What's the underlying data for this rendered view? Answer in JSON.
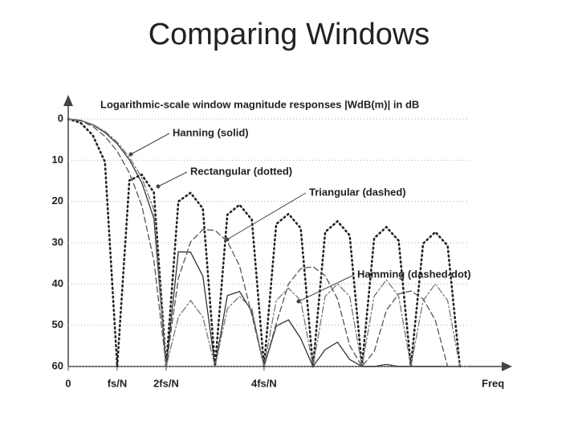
{
  "chart_data": {
    "type": "line",
    "title": "Comparing Windows",
    "subtitle": "Logarithmic-scale window magnitude responses |WdB(m)| in dB",
    "x_label": "Freq",
    "inverted_y": true,
    "grid": true,
    "x": [
      0,
      0.25,
      0.5,
      0.75,
      1,
      1.25,
      1.5,
      1.75,
      2,
      2.25,
      2.5,
      2.75,
      3,
      3.25,
      3.5,
      3.75,
      4,
      4.25,
      4.5,
      4.75,
      5,
      5.25,
      5.5,
      5.75,
      6,
      6.25,
      6.5,
      6.75,
      7,
      7.25,
      7.5,
      7.75,
      8
    ],
    "xlim": [
      0,
      8.2
    ],
    "xticks": [
      0,
      {
        "value": 1,
        "label": "fs/N"
      },
      {
        "value": 2,
        "label": "2fs/N"
      },
      {
        "value": 4,
        "label": "4fs/N"
      }
    ],
    "ylim": [
      0,
      60
    ],
    "yticks": [
      0,
      10,
      20,
      30,
      40,
      50,
      60
    ],
    "series": [
      {
        "name": "Hanning (solid)",
        "color": "#333333",
        "dash": "solid",
        "values": [
          0,
          0.35,
          1.42,
          3.27,
          6.02,
          9.9,
          15.4,
          24.1,
          60,
          32.2,
          32.3,
          38.1,
          60,
          42.8,
          41.8,
          46.7,
          60,
          50.2,
          48.7,
          53.2,
          60,
          55.9,
          54.1,
          58.3,
          60,
          60,
          59.5,
          60,
          60,
          60,
          60,
          60,
          60
        ]
      },
      {
        "name": "Rectangular (dotted)",
        "color": "#222222",
        "dash": "dotted",
        "values": [
          0,
          0.91,
          3.92,
          10.4,
          60,
          14.9,
          13.5,
          17.8,
          60,
          20,
          17.9,
          21.7,
          60,
          23.2,
          20.8,
          24.4,
          60,
          25.5,
          23,
          26.5,
          60,
          27.4,
          24.8,
          28.2,
          60,
          28.9,
          26.2,
          29.5,
          60,
          30.2,
          27.4,
          30.7,
          60
        ]
      },
      {
        "name": "Triangular (dashed)",
        "color": "#555555",
        "dash": "dashed",
        "values": [
          0,
          0.45,
          1.82,
          4.2,
          7.84,
          13.1,
          20.9,
          34.3,
          60,
          38.6,
          29.8,
          26.8,
          27,
          29.7,
          35.6,
          47.5,
          60,
          49.6,
          40,
          36.3,
          35.8,
          38,
          43.6,
          54.9,
          60,
          56.4,
          46.4,
          42.4,
          41.7,
          43.6,
          48.8,
          60,
          60
        ]
      },
      {
        "name": "Hamming (dashed-dot)",
        "color": "#777777",
        "dash": "dashdot",
        "values": [
          0,
          0.3,
          1.3,
          3.0,
          5.6,
          9.3,
          14.2,
          22,
          60,
          48,
          44,
          48,
          60,
          46,
          43,
          46,
          60,
          44,
          41,
          44,
          60,
          43,
          40,
          43,
          60,
          43,
          39,
          43,
          60,
          44,
          40,
          44,
          60
        ]
      }
    ]
  }
}
